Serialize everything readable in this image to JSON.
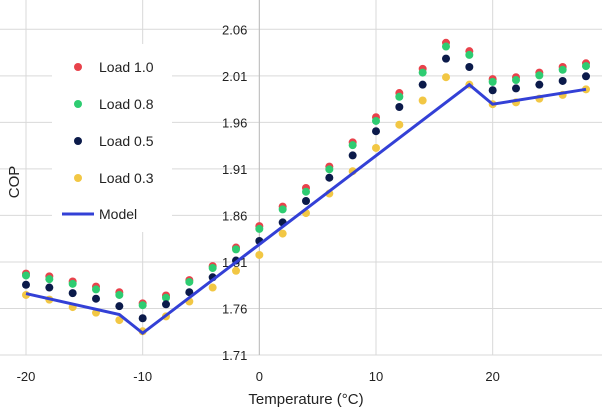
{
  "chart_data": {
    "type": "scatter",
    "xlabel": "Temperature (°C)",
    "ylabel": "COP",
    "xlim": [
      -20,
      28
    ],
    "ylim": [
      1.71,
      2.07
    ],
    "x_ticks": [
      -20,
      -10,
      0,
      10,
      20
    ],
    "x_tick_labels": [
      "-20",
      "-10",
      "0",
      "10",
      "20"
    ],
    "y_ticks": [
      1.71,
      1.76,
      1.81,
      1.86,
      1.91,
      1.96,
      2.01,
      2.06
    ],
    "y_tick_labels": [
      "1.71",
      "1.76",
      "1.81",
      "1.86",
      "1.91",
      "1.96",
      "2.01",
      "2.06"
    ],
    "grid": true,
    "legend_position": "top-left",
    "x": [
      -20,
      -18,
      -16,
      -14,
      -12,
      -10,
      -8,
      -6,
      -4,
      -2,
      0,
      2,
      4,
      6,
      8,
      10,
      12,
      14,
      16,
      18,
      20,
      22,
      24,
      26,
      28
    ],
    "series": [
      {
        "name": "Load 1.0",
        "color": "#e8424b",
        "marker": "circle",
        "values": [
          1.7975,
          1.7945,
          1.789,
          1.7835,
          1.7775,
          1.7655,
          1.774,
          1.7905,
          1.8055,
          1.8255,
          1.8485,
          1.8695,
          1.8895,
          1.9125,
          1.9385,
          1.9655,
          1.9915,
          2.0175,
          2.0455,
          2.0365,
          2.0065,
          2.0085,
          2.0135,
          2.0195,
          2.0235
        ]
      },
      {
        "name": "Load 0.8",
        "color": "#2ecc71",
        "marker": "circle",
        "values": [
          1.7955,
          1.7915,
          1.7865,
          1.7805,
          1.7745,
          1.7635,
          1.7715,
          1.7885,
          1.8035,
          1.8235,
          1.8455,
          1.8665,
          1.8855,
          1.9095,
          1.9355,
          1.9615,
          1.9875,
          2.0135,
          2.0415,
          2.0325,
          2.0035,
          2.0055,
          2.0105,
          2.0165,
          2.0205
        ]
      },
      {
        "name": "Load 0.5",
        "color": "#0b1a4a",
        "marker": "circle",
        "values": [
          1.7855,
          1.7825,
          1.7765,
          1.7705,
          1.7625,
          1.7495,
          1.7645,
          1.7775,
          1.7935,
          1.8115,
          1.8325,
          1.8525,
          1.8755,
          1.9005,
          1.9245,
          1.9505,
          1.9765,
          2.0005,
          2.0285,
          2.0195,
          1.9945,
          1.9965,
          2.0005,
          2.0045,
          2.0095
        ]
      },
      {
        "name": "Load 0.3",
        "color": "#f2c744",
        "marker": "circle",
        "values": [
          1.7745,
          1.7695,
          1.7615,
          1.7555,
          1.7475,
          1.7355,
          1.7515,
          1.7675,
          1.7825,
          1.8005,
          1.8175,
          1.8405,
          1.8625,
          1.8835,
          1.9075,
          1.9325,
          1.9575,
          1.9835,
          2.0085,
          2.0005,
          1.9795,
          1.9815,
          1.9855,
          1.9895,
          1.9955
        ]
      },
      {
        "name": "Model",
        "color": "#3340d6",
        "marker": "line",
        "x": [
          -20,
          -12,
          -10,
          18,
          20,
          28
        ],
        "values": [
          1.776,
          1.7535,
          1.7335,
          2.0005,
          1.9795,
          1.9955
        ]
      }
    ]
  }
}
